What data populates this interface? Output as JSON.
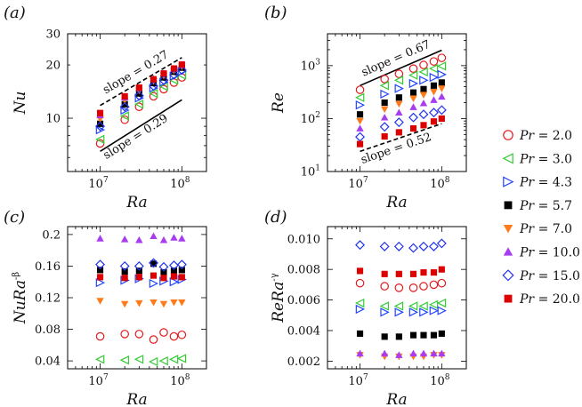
{
  "figure": {
    "legend": {
      "placement": "right",
      "entries": [
        {
          "label": "Pr = 2.0",
          "prefix": "Pr",
          "value": "= 2.0",
          "marker": "circle-open",
          "color": "#e41a1c"
        },
        {
          "label": "Pr = 3.0",
          "prefix": "Pr",
          "value": "= 3.0",
          "marker": "triangle-left-open",
          "color": "#33cc33"
        },
        {
          "label": "Pr = 4.3",
          "prefix": "Pr",
          "value": "= 4.3",
          "marker": "triangle-right-open",
          "color": "#2244ff"
        },
        {
          "label": "Pr = 5.7",
          "prefix": "Pr",
          "value": "= 5.7",
          "marker": "square-filled",
          "color": "#000000"
        },
        {
          "label": "Pr = 7.0",
          "prefix": "Pr",
          "value": "= 7.0",
          "marker": "triangle-down-filled",
          "color": "#ff7a1a"
        },
        {
          "label": "Pr = 10.0",
          "prefix": "Pr",
          "value": "= 10.0",
          "marker": "triangle-up-filled",
          "color": "#a83cf0"
        },
        {
          "label": "Pr = 15.0",
          "prefix": "Pr",
          "value": "= 15.0",
          "marker": "diamond-open",
          "color": "#2233ee"
        },
        {
          "label": "Pr = 20.0",
          "prefix": "Pr",
          "value": "= 20.0",
          "marker": "square-filled",
          "color": "#dd0000"
        }
      ]
    }
  },
  "chart_data": [
    {
      "panel_label": "(a)",
      "type": "scatter",
      "xlabel": "Ra",
      "ylabel": "Nu",
      "xscale": "log",
      "yscale": "log",
      "xlim": [
        4000000,
        200000000
      ],
      "ylim": [
        5,
        30
      ],
      "x_ticks": [
        {
          "v": 10000000,
          "base": "10",
          "exp": "7"
        },
        {
          "v": 100000000,
          "base": "10",
          "exp": "8"
        }
      ],
      "y_ticks": [
        {
          "v": 10,
          "t": "10"
        },
        {
          "v": 20,
          "t": "20"
        },
        {
          "v": 30,
          "t": "30"
        }
      ],
      "x": [
        10000000,
        20000000,
        30000000,
        45000000,
        60000000,
        80000000,
        100000000
      ],
      "series": [
        {
          "name": "Pr = 2.0",
          "values": [
            7.2,
            9.8,
            11.6,
            13.3,
            14.6,
            15.9,
            17.0
          ]
        },
        {
          "name": "Pr = 3.0",
          "values": [
            7.6,
            10.3,
            12.0,
            13.8,
            15.1,
            16.4,
            17.5
          ]
        },
        {
          "name": "Pr = 4.3",
          "values": [
            8.6,
            11.1,
            13.0,
            14.8,
            16.0,
            17.3,
            18.4
          ]
        },
        {
          "name": "Pr = 5.7",
          "values": [
            9.3,
            12.0,
            13.8,
            15.8,
            17.0,
            18.3,
            19.3
          ]
        },
        {
          "name": "Pr = 7.0",
          "values": [
            9.9,
            12.6,
            14.3,
            16.2,
            17.4,
            18.6,
            19.6
          ]
        },
        {
          "name": "Pr = 10.0",
          "values": [
            10.4,
            13.1,
            14.8,
            16.7,
            17.9,
            19.0,
            19.9
          ]
        },
        {
          "name": "Pr = 15.0",
          "values": [
            9.0,
            11.6,
            13.4,
            15.2,
            16.4,
            17.6,
            18.7
          ]
        },
        {
          "name": "Pr = 20.0",
          "values": [
            10.7,
            13.3,
            14.9,
            16.6,
            17.9,
            19.1,
            20.1
          ]
        }
      ],
      "lines": [
        {
          "style": "dashed",
          "x": [
            10000000,
            100000000
          ],
          "y": [
            11.8,
            22.0
          ],
          "label": "slope = 0.27"
        },
        {
          "style": "solid",
          "x": [
            10000000,
            100000000
          ],
          "y": [
            6.5,
            12.7
          ],
          "label": "slope = 0.29"
        }
      ]
    },
    {
      "panel_label": "(b)",
      "type": "scatter",
      "xlabel": "Ra",
      "ylabel": "Re",
      "xscale": "log",
      "yscale": "log",
      "xlim": [
        4000000,
        200000000
      ],
      "ylim": [
        10,
        4000
      ],
      "x_ticks": [
        {
          "v": 10000000,
          "base": "10",
          "exp": "7"
        },
        {
          "v": 100000000,
          "base": "10",
          "exp": "8"
        }
      ],
      "y_ticks": [
        {
          "v": 10,
          "base": "10",
          "exp": "1"
        },
        {
          "v": 100,
          "base": "10",
          "exp": "2"
        },
        {
          "v": 1000,
          "base": "10",
          "exp": "3"
        }
      ],
      "x": [
        10000000,
        20000000,
        30000000,
        45000000,
        60000000,
        80000000,
        100000000
      ],
      "series": [
        {
          "name": "Pr = 2.0",
          "values": [
            350,
            560,
            700,
            880,
            1030,
            1200,
            1400
          ]
        },
        {
          "name": "Pr = 3.0",
          "values": [
            250,
            420,
            530,
            660,
            760,
            880,
            980
          ]
        },
        {
          "name": "Pr = 4.3",
          "values": [
            180,
            290,
            370,
            460,
            530,
            600,
            680
          ]
        },
        {
          "name": "Pr = 5.7",
          "values": [
            120,
            200,
            250,
            310,
            360,
            420,
            480
          ]
        },
        {
          "name": "Pr = 7.0",
          "values": [
            90,
            150,
            190,
            240,
            280,
            320,
            370
          ]
        },
        {
          "name": "Pr = 10.0",
          "values": [
            65,
            105,
            130,
            165,
            195,
            225,
            260
          ]
        },
        {
          "name": "Pr = 15.0",
          "values": [
            45,
            70,
            85,
            105,
            120,
            130,
            145
          ]
        },
        {
          "name": "Pr = 20.0",
          "values": [
            33,
            46,
            55,
            65,
            75,
            88,
            100
          ]
        }
      ],
      "lines": [
        {
          "style": "solid",
          "x": [
            10000000,
            100000000
          ],
          "y": [
            420,
            1960
          ],
          "label": "slope = 0.67"
        },
        {
          "style": "dashed",
          "x": [
            10000000,
            100000000
          ],
          "y": [
            24,
            80
          ],
          "label": "slope = 0.52"
        }
      ]
    },
    {
      "panel_label": "(c)",
      "type": "scatter",
      "xlabel": "Ra",
      "ylabel": "NuRa",
      "ylabel_sup": "-β",
      "xscale": "log",
      "yscale": "linear",
      "xlim": [
        4000000,
        200000000
      ],
      "ylim": [
        0.03,
        0.21
      ],
      "x_ticks": [
        {
          "v": 10000000,
          "base": "10",
          "exp": "7"
        },
        {
          "v": 100000000,
          "base": "10",
          "exp": "8"
        }
      ],
      "y_ticks": [
        {
          "v": 0.04,
          "t": "0.04"
        },
        {
          "v": 0.08,
          "t": "0.08"
        },
        {
          "v": 0.12,
          "t": "0.12"
        },
        {
          "v": 0.16,
          "t": "0.16"
        },
        {
          "v": 0.2,
          "t": "0.2"
        }
      ],
      "x": [
        10000000,
        20000000,
        30000000,
        45000000,
        60000000,
        80000000,
        100000000
      ],
      "series": [
        {
          "name": "Pr = 2.0",
          "values": [
            0.071,
            0.074,
            0.074,
            0.067,
            0.076,
            0.071,
            0.073
          ]
        },
        {
          "name": "Pr = 3.0",
          "values": [
            0.042,
            0.041,
            0.042,
            0.039,
            0.04,
            0.042,
            0.043
          ]
        },
        {
          "name": "Pr = 4.3",
          "values": [
            0.139,
            0.142,
            0.144,
            0.138,
            0.141,
            0.14,
            0.143
          ]
        },
        {
          "name": "Pr = 5.7",
          "values": [
            0.155,
            0.153,
            0.154,
            0.163,
            0.152,
            0.154,
            0.155
          ]
        },
        {
          "name": "Pr = 7.0",
          "values": [
            0.116,
            0.112,
            0.113,
            0.114,
            0.112,
            0.114,
            0.114
          ]
        },
        {
          "name": "Pr = 10.0",
          "values": [
            0.195,
            0.194,
            0.193,
            0.198,
            0.193,
            0.196,
            0.195
          ]
        },
        {
          "name": "Pr = 15.0",
          "values": [
            0.162,
            0.16,
            0.16,
            0.164,
            0.159,
            0.161,
            0.162
          ]
        },
        {
          "name": "Pr = 20.0",
          "values": [
            0.146,
            0.145,
            0.146,
            0.148,
            0.145,
            0.147,
            0.146
          ]
        }
      ]
    },
    {
      "panel_label": "(d)",
      "type": "scatter",
      "xlabel": "Ra",
      "ylabel": "ReRa",
      "ylabel_sup": "-γ",
      "xscale": "log",
      "yscale": "linear",
      "xlim": [
        4000000,
        200000000
      ],
      "ylim": [
        0.0015,
        0.0108
      ],
      "x_ticks": [
        {
          "v": 10000000,
          "base": "10",
          "exp": "7"
        },
        {
          "v": 100000000,
          "base": "10",
          "exp": "8"
        }
      ],
      "y_ticks": [
        {
          "v": 0.002,
          "t": "0.002"
        },
        {
          "v": 0.004,
          "t": "0.004"
        },
        {
          "v": 0.006,
          "t": "0.006"
        },
        {
          "v": 0.008,
          "t": "0.008"
        },
        {
          "v": 0.01,
          "t": "0.010"
        }
      ],
      "x": [
        10000000,
        20000000,
        30000000,
        45000000,
        60000000,
        80000000,
        100000000
      ],
      "series": [
        {
          "name": "Pr = 2.0",
          "values": [
            0.0071,
            0.0069,
            0.0068,
            0.0068,
            0.0069,
            0.007,
            0.0071
          ]
        },
        {
          "name": "Pr = 3.0",
          "values": [
            0.0058,
            0.0056,
            0.0056,
            0.0056,
            0.0056,
            0.0057,
            0.0058
          ]
        },
        {
          "name": "Pr = 4.3",
          "values": [
            0.0054,
            0.0052,
            0.0052,
            0.0052,
            0.0052,
            0.0053,
            0.0053
          ]
        },
        {
          "name": "Pr = 5.7",
          "values": [
            0.0038,
            0.0036,
            0.0036,
            0.0037,
            0.0037,
            0.0037,
            0.0038
          ]
        },
        {
          "name": "Pr = 7.0",
          "values": [
            0.0024,
            0.0023,
            0.0023,
            0.0023,
            0.0023,
            0.0024,
            0.0024
          ]
        },
        {
          "name": "Pr = 10.0",
          "values": [
            0.0025,
            0.0025,
            0.0024,
            0.0025,
            0.0025,
            0.0025,
            0.0025
          ]
        },
        {
          "name": "Pr = 15.0",
          "values": [
            0.0096,
            0.0095,
            0.0095,
            0.0094,
            0.0095,
            0.0095,
            0.0097
          ]
        },
        {
          "name": "Pr = 20.0",
          "values": [
            0.0079,
            0.0077,
            0.0077,
            0.0077,
            0.0078,
            0.0078,
            0.008
          ]
        }
      ]
    }
  ]
}
